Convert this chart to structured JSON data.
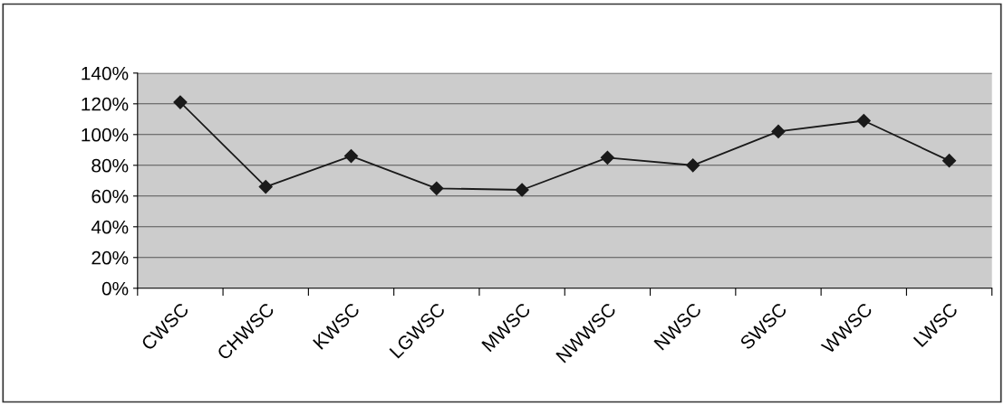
{
  "chart_data": {
    "type": "line",
    "categories": [
      "CWSC",
      "CHWSC",
      "KWSC",
      "LGWSC",
      "MWSC",
      "NWWSC",
      "NWSC",
      "SWSC",
      "WWSC",
      "LWSC"
    ],
    "series": [
      {
        "color": "#1a1a1a",
        "values": [
          121,
          66,
          86,
          65,
          64,
          85,
          80,
          102,
          109,
          83
        ]
      }
    ],
    "ylim": [
      0,
      140
    ],
    "yticks": [
      {
        "value": 0,
        "label": "0%"
      },
      {
        "value": 20,
        "label": "20%"
      },
      {
        "value": 40,
        "label": "40%"
      },
      {
        "value": 60,
        "label": "60%"
      },
      {
        "value": 80,
        "label": "80%"
      },
      {
        "value": 100,
        "label": "100%"
      },
      {
        "value": 120,
        "label": "120%"
      },
      {
        "value": 140,
        "label": "140%"
      }
    ],
    "grid": "y",
    "marker": "diamond",
    "line_style": "solid",
    "legend": false
  }
}
